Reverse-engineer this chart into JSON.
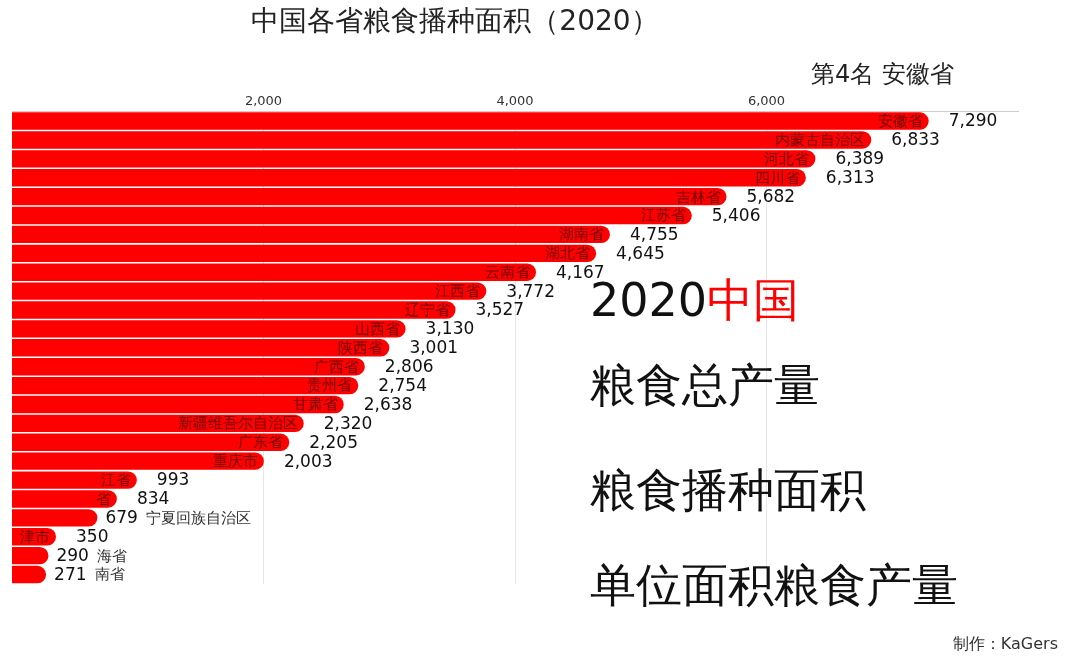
{
  "chart_data": {
    "type": "bar",
    "orientation": "horizontal",
    "title": "中国各省粮食播种面积（2020）",
    "subtitle": "第4名 安徽省",
    "categories": [
      "安徽省",
      "内蒙古自治区",
      "河北省",
      "四川省",
      "吉林省",
      "江苏省",
      "湖南省",
      "湖北省",
      "云南省",
      "江西省",
      "辽宁省",
      "山西省",
      "陕西省",
      "广西省",
      "贵州省",
      "甘肃省",
      "新疆维吾尔自治区",
      "广东省",
      "重庆市",
      "江省",
      "省",
      "宁夏回族自治区",
      "津市",
      "海省",
      "南省"
    ],
    "values": [
      7290,
      6833,
      6389,
      6313,
      5682,
      5406,
      4755,
      4645,
      4167,
      3772,
      3527,
      3130,
      3001,
      2806,
      2754,
      2638,
      2320,
      2205,
      2003,
      993,
      834,
      679,
      350,
      290,
      271
    ],
    "value_labels": [
      "7,290",
      "6,833",
      "6,389",
      "6,313",
      "5,682",
      "5,406",
      "4,755",
      "4,645",
      "4,167",
      "3,772",
      "3,527",
      "3,130",
      "3,001",
      "2,806",
      "2,754",
      "2,638",
      "2,320",
      "2,205",
      "2,003",
      "993",
      "834",
      "679",
      "350",
      "290",
      "271"
    ],
    "color": "#ff0000",
    "xlim": [
      0,
      8000
    ],
    "xticks": [
      {
        "value": 2000,
        "label": "2,000"
      },
      {
        "value": 4000,
        "label": "4,000"
      },
      {
        "value": 6000,
        "label": "6,000"
      }
    ],
    "grid": "x",
    "annotations": [
      "2020中国",
      "粮食总产量",
      "粮食播种面积",
      "单位面积粮食产量",
      "制作：KaGers"
    ]
  }
}
